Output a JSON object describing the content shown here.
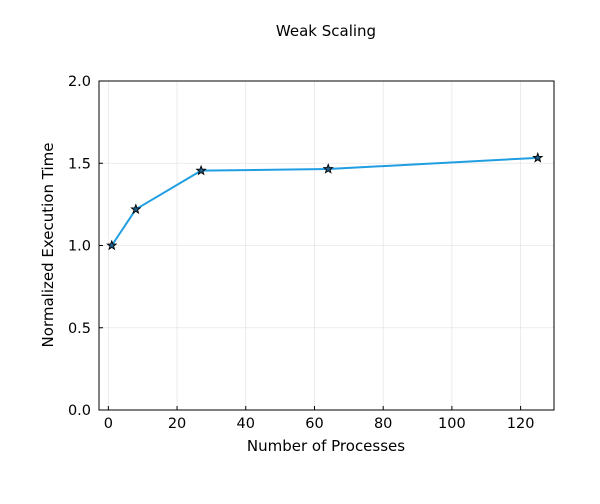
{
  "chart_data": {
    "type": "line",
    "title": "Weak Scaling",
    "xlabel": "Number of Processes",
    "ylabel": "Normalized Execution Time",
    "xlim": [
      -2.72,
      129.72
    ],
    "ylim": [
      0,
      2.0
    ],
    "x_ticks": [
      0,
      20,
      40,
      60,
      80,
      100,
      120
    ],
    "x_tick_labels": [
      "0",
      "20",
      "40",
      "60",
      "80",
      "100",
      "120"
    ],
    "y_ticks": [
      0,
      0.5,
      1.0,
      1.5,
      2.0
    ],
    "y_tick_labels": [
      "0.0",
      "0.5",
      "1.0",
      "1.5",
      "2.0"
    ],
    "grid": true,
    "legend": "none",
    "series": [
      {
        "x": [
          1,
          8,
          27,
          64,
          125
        ],
        "y": [
          1.0,
          1.22,
          1.455,
          1.465,
          1.533
        ],
        "color": "#1f9ee2",
        "marker": "star",
        "marker_color": "#1f5f8b"
      }
    ]
  }
}
